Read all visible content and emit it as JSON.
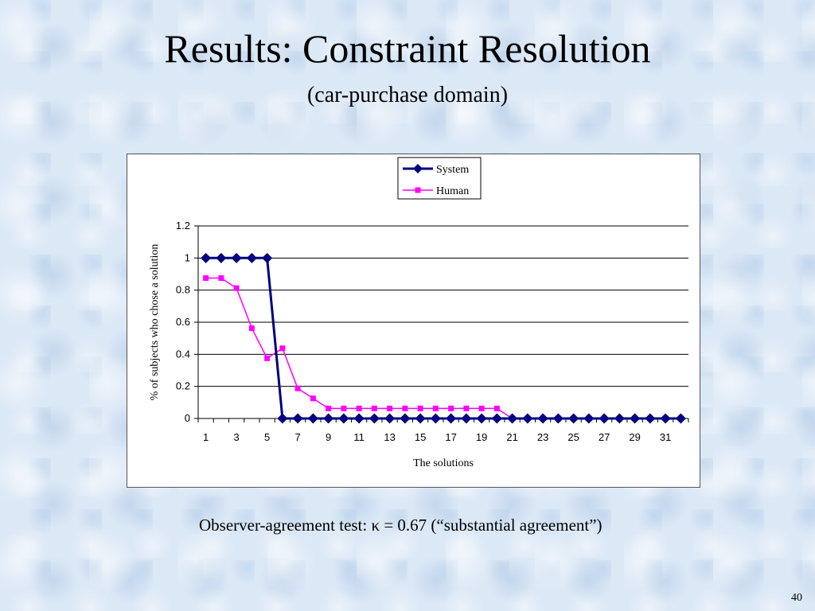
{
  "slide": {
    "title": "Results: Constraint Resolution",
    "subtitle": "(car-purchase domain)",
    "footer": "Observer-agreement test: κ = 0.67 (“substantial agreement”)",
    "page_number": "40"
  },
  "colors": {
    "system": "#000080",
    "human": "#ff00ff",
    "background": "#dbe8f6"
  },
  "chart_data": {
    "type": "line",
    "xlabel": "The solutions",
    "ylabel": "% of subjects who chose a solution",
    "ylim": [
      0,
      1.2
    ],
    "yticks": [
      0,
      0.2,
      0.4,
      0.6,
      0.8,
      1,
      1.2
    ],
    "x": [
      1,
      2,
      3,
      4,
      5,
      6,
      7,
      8,
      9,
      10,
      11,
      12,
      13,
      14,
      15,
      16,
      17,
      18,
      19,
      20,
      21,
      22,
      23,
      24,
      25,
      26,
      27,
      28,
      29,
      30,
      31,
      32
    ],
    "xtick_labels": [
      "1",
      "3",
      "5",
      "7",
      "9",
      "11",
      "13",
      "15",
      "17",
      "19",
      "21",
      "23",
      "25",
      "27",
      "29",
      "31"
    ],
    "grid": "horizontal",
    "legend_position": "top-center",
    "series": [
      {
        "name": "System",
        "marker": "diamond",
        "values": [
          1,
          1,
          1,
          1,
          1,
          0,
          0,
          0,
          0,
          0,
          0,
          0,
          0,
          0,
          0,
          0,
          0,
          0,
          0,
          0,
          0,
          0,
          0,
          0,
          0,
          0,
          0,
          0,
          0,
          0,
          0,
          0
        ]
      },
      {
        "name": "Human",
        "marker": "square",
        "values": [
          0.875,
          0.875,
          0.8125,
          0.5625,
          0.375,
          0.4375,
          0.1875,
          0.125,
          0.0625,
          0.0625,
          0.0625,
          0.0625,
          0.0625,
          0.0625,
          0.0625,
          0.0625,
          0.0625,
          0.0625,
          0.0625,
          0.0625,
          0,
          0,
          0,
          0,
          0,
          0,
          0,
          0,
          0,
          0,
          0,
          0
        ]
      }
    ]
  }
}
